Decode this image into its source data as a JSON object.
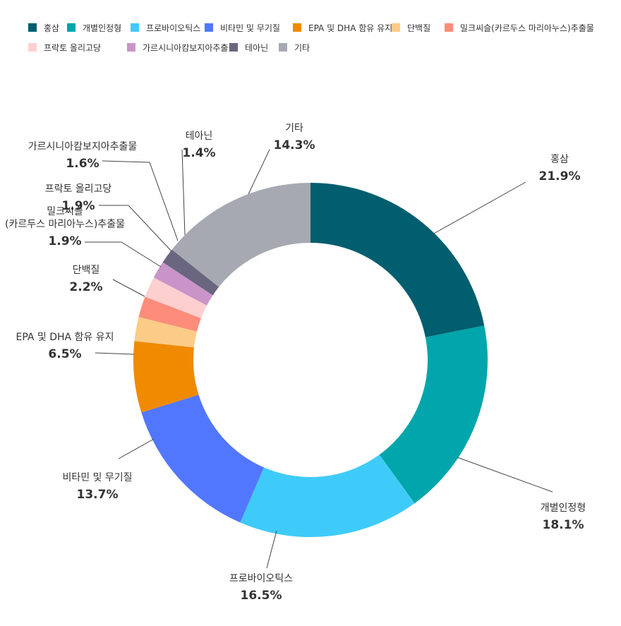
{
  "chart_data": {
    "type": "pie",
    "donut": true,
    "legend_position": "top",
    "slices": [
      {
        "label": "홍삼",
        "value": 21.9,
        "value_label": "21.9%",
        "color": "#005e6e"
      },
      {
        "label": "개별인정형",
        "value": 18.1,
        "value_label": "18.1%",
        "color": "#00a6ac"
      },
      {
        "label": "프로바이오틱스",
        "value": 16.5,
        "value_label": "16.5%",
        "color": "#3fcbf9"
      },
      {
        "label": "비타민 및 무기질",
        "value": 13.7,
        "value_label": "13.7%",
        "color": "#5277ff"
      },
      {
        "label": "EPA 및 DHA 함유 유지",
        "value": 6.5,
        "value_label": "6.5%",
        "color": "#f08a00"
      },
      {
        "label": "단백질",
        "value": 2.2,
        "value_label": "2.2%",
        "color": "#fccb87"
      },
      {
        "label": "밀크씨슬(카르두스 마리아누스)추출물",
        "label_lines": [
          "밀크씨슬",
          "(카르두스 마리아누스)추출물"
        ],
        "value": 1.9,
        "value_label": "1.9%",
        "color": "#fd8c7a"
      },
      {
        "label": "프락토 올리고당",
        "value": 1.9,
        "value_label": "1.9%",
        "color": "#fdcfcf"
      },
      {
        "label": "가르시니아캄보지아추출물",
        "value": 1.6,
        "value_label": "1.6%",
        "color": "#c994c8"
      },
      {
        "label": "테아닌",
        "value": 1.4,
        "value_label": "1.4%",
        "color": "#6a667f"
      },
      {
        "label": "기타",
        "value": 14.3,
        "value_label": "14.3%",
        "color": "#a6a9b2"
      }
    ]
  }
}
